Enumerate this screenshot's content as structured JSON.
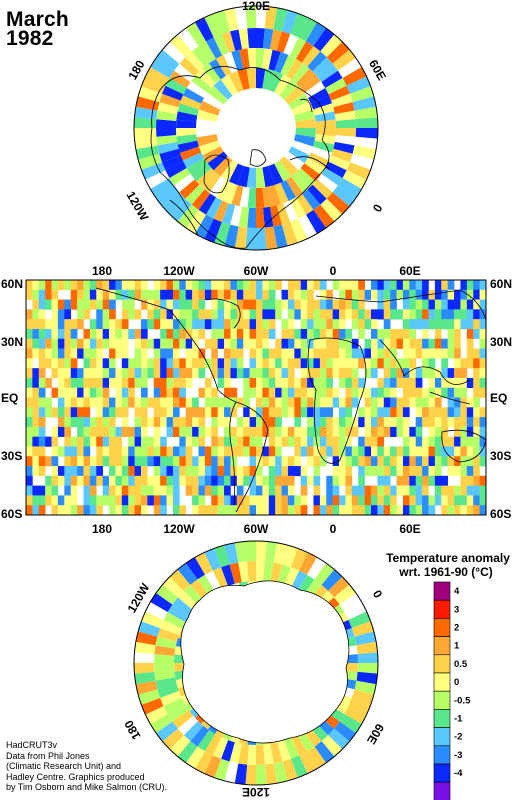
{
  "title": {
    "line1": "March",
    "line2": "1982"
  },
  "north_polar": {
    "labels": {
      "top": "120E",
      "upper_right": "60E",
      "right": "0",
      "lower_left": "120W",
      "upper_left": "180"
    }
  },
  "equirect": {
    "top_labels": [
      "180",
      "120W",
      "60W",
      "0",
      "60E"
    ],
    "bottom_labels": [
      "180",
      "120W",
      "60W",
      "0",
      "60E"
    ],
    "left_labels": [
      "60N",
      "30N",
      "EQ",
      "30S",
      "60S"
    ],
    "right_labels": [
      "60N",
      "30N",
      "EQ",
      "30S",
      "60S"
    ]
  },
  "south_polar": {
    "labels": {
      "upper_left": "120W",
      "upper_right": "0",
      "lower_right": "60E",
      "bottom": "120E",
      "lower_left": "180"
    }
  },
  "legend": {
    "title_line1": "Temperature anomaly",
    "title_line2": "wrt. 1961-90  (°C)",
    "bins": [
      {
        "label": "4",
        "color": "#a0007e"
      },
      {
        "label": "3",
        "color": "#ff1a00"
      },
      {
        "label": "2",
        "color": "#ff6a00"
      },
      {
        "label": "1",
        "color": "#ffa733"
      },
      {
        "label": "0.5",
        "color": "#ffd24a"
      },
      {
        "label": "0",
        "color": "#ffff80"
      },
      {
        "label": "-0.5",
        "color": "#b6ff66"
      },
      {
        "label": "-1",
        "color": "#5ae68a"
      },
      {
        "label": "-2",
        "color": "#5ac8ff"
      },
      {
        "label": "-3",
        "color": "#2a8cff"
      },
      {
        "label": "-4",
        "color": "#0a28ff"
      },
      {
        "label": "",
        "color": "#7a10e6"
      }
    ]
  },
  "credits": [
    "HadCRUT3v",
    "Data from Phil Jones",
    "(Climatic Research Unit) and",
    "Hadley Centre.  Graphics produced",
    "by Tim Osborn and Mike Salmon (CRU)."
  ]
}
